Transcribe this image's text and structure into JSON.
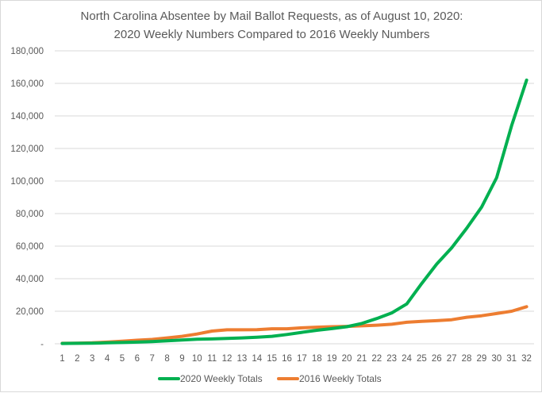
{
  "chart_data": {
    "type": "line",
    "title_lines": [
      "North Carolina Absentee by Mail Ballot Requests, as of August 10, 2020:",
      "2020 Weekly Numbers Compared to 2016 Weekly Numbers"
    ],
    "xlabel": "",
    "ylabel": "",
    "ylim": [
      0,
      180000
    ],
    "y_ticks": [
      0,
      20000,
      40000,
      60000,
      80000,
      100000,
      120000,
      140000,
      160000,
      180000
    ],
    "y_tick_labels": [
      "-",
      "20,000",
      "40,000",
      "60,000",
      "80,000",
      "100,000",
      "120,000",
      "140,000",
      "160,000",
      "180,000"
    ],
    "gridlines": true,
    "legend_position": "bottom",
    "categories": [
      "1",
      "2",
      "3",
      "4",
      "5",
      "6",
      "7",
      "8",
      "9",
      "10",
      "11",
      "12",
      "13",
      "14",
      "15",
      "16",
      "17",
      "18",
      "19",
      "20",
      "21",
      "22",
      "23",
      "24",
      "25",
      "26",
      "27",
      "28",
      "29",
      "30",
      "31",
      "32"
    ],
    "series": [
      {
        "name": "2020 Weekly Totals",
        "color": "#00b050",
        "values": [
          200,
          300,
          400,
          600,
          800,
          1000,
          1300,
          1800,
          2300,
          2800,
          3000,
          3300,
          3600,
          4000,
          4600,
          5700,
          7000,
          8300,
          9300,
          10500,
          12500,
          15500,
          19000,
          24500,
          37000,
          49000,
          59000,
          71000,
          84000,
          102000,
          134000,
          162000
        ]
      },
      {
        "name": "2016 Weekly Totals",
        "color": "#ed7d31",
        "values": [
          300,
          400,
          600,
          1000,
          1600,
          2200,
          2700,
          3600,
          4600,
          6000,
          7800,
          8600,
          8600,
          8700,
          9200,
          9200,
          9800,
          10200,
          10500,
          10700,
          11000,
          11400,
          12000,
          13200,
          13800,
          14200,
          14800,
          16300,
          17200,
          18600,
          20000,
          22800
        ]
      }
    ]
  }
}
